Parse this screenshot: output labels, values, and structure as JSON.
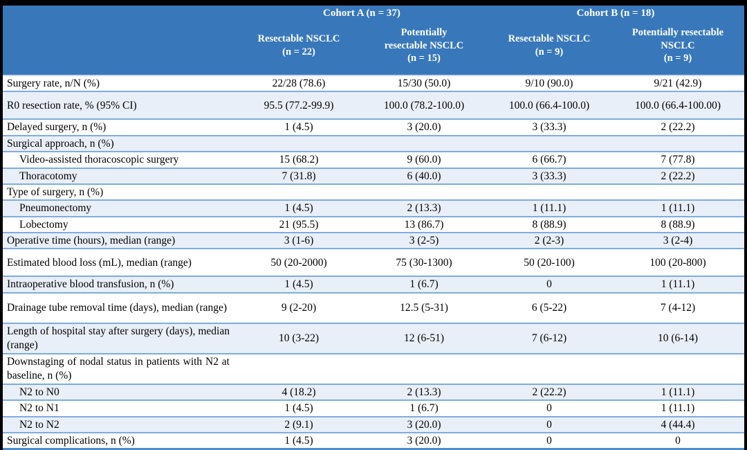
{
  "table": {
    "header": {
      "cohort_a": "Cohort A (n = 37)",
      "cohort_b": "Cohort B (n = 18)",
      "subcolumns": [
        "Resectable NSCLC\n(n = 22)",
        "Potentially\nresectable NSCLC\n(n = 15)",
        "Resectable NSCLC\n(n = 9)",
        "Potentially resectable\nNSCLC\n(n = 9)"
      ]
    },
    "rows": [
      {
        "label": "Surgery rate, n/N (%)",
        "values": [
          "22/28 (78.6)",
          "15/30 (50.0)",
          "9/10 (90.0)",
          "9/21 (42.9)"
        ],
        "stripe": false
      },
      {
        "label": "R0 resection rate, % (95% CI)",
        "values": [
          "95.5 (77.2-99.9)",
          "100.0 (78.2-100.0)",
          "100.0 (66.4-100.0)",
          "100.0 (66.4-100.00)"
        ],
        "stripe": true,
        "tall": true
      },
      {
        "label": "Delayed surgery, n (%)",
        "values": [
          "1 (4.5)",
          "3 (20.0)",
          "3 (33.3)",
          "2 (22.2)"
        ],
        "stripe": false
      },
      {
        "label": "Surgical approach, n (%)",
        "values": [
          "",
          "",
          "",
          ""
        ],
        "stripe": true,
        "section": true
      },
      {
        "label": "Video-assisted thoracoscopic surgery",
        "values": [
          "15 (68.2)",
          "9 (60.0)",
          "6 (66.7)",
          "7 (77.8)"
        ],
        "stripe": false,
        "indent": true
      },
      {
        "label": "Thoracotomy",
        "values": [
          "7 (31.8)",
          "6 (40.0)",
          "3 (33.3)",
          "2 (22.2)"
        ],
        "stripe": true,
        "indent": true
      },
      {
        "label": "Type of surgery, n (%)",
        "values": [
          "",
          "",
          "",
          ""
        ],
        "stripe": false,
        "section": true
      },
      {
        "label": "Pneumonectomy",
        "values": [
          "1 (4.5)",
          "2 (13.3)",
          "1 (11.1)",
          "1 (11.1)"
        ],
        "stripe": true,
        "indent": true
      },
      {
        "label": "Lobectomy",
        "values": [
          "21 (95.5)",
          "13 (86.7)",
          "8 (88.9)",
          "8 (88.9)"
        ],
        "stripe": false,
        "indent": true
      },
      {
        "label": "Operative time (hours), median (range)",
        "values": [
          "3 (1-6)",
          "3 (2-5)",
          "2 (2-3)",
          "3 (2-4)"
        ],
        "stripe": true
      },
      {
        "label": "Estimated blood loss (mL), median (range)",
        "values": [
          "50 (20-2000)",
          "75 (30-1300)",
          "50 (20-100)",
          "100 (20-800)"
        ],
        "stripe": false,
        "tall": true
      },
      {
        "label": "Intraoperative blood transfusion, n (%)",
        "values": [
          "1 (4.5)",
          "1 (6.7)",
          "0",
          "1 (11.1)"
        ],
        "stripe": true
      },
      {
        "label": "Drainage tube removal time (days), median (range)",
        "values": [
          "9 (2-20)",
          "12.5 (5-31)",
          "6 (5-22)",
          "7 (4-12)"
        ],
        "stripe": false,
        "twoline": true
      },
      {
        "label": "Length of hospital stay after surgery (days), median (range)",
        "values": [
          "10 (3-22)",
          "12 (6-51)",
          "7 (6-12)",
          "10 (6-14)"
        ],
        "stripe": true,
        "twoline": true
      },
      {
        "label": "Downstaging of nodal status in patients with N2 at baseline, n (%)",
        "values": [
          "",
          "",
          "",
          ""
        ],
        "stripe": false,
        "section": true,
        "twoline": true
      },
      {
        "label": "N2 to N0",
        "values": [
          "4 (18.2)",
          "2 (13.3)",
          "2 (22.2)",
          "1 (11.1)"
        ],
        "stripe": true,
        "indent": true
      },
      {
        "label": "N2 to N1",
        "values": [
          "1 (4.5)",
          "1 (6.7)",
          "0",
          "1 (11.1)"
        ],
        "stripe": false,
        "indent": true
      },
      {
        "label": "N2 to N2",
        "values": [
          "2 (9.1)",
          "3 (20.0)",
          "0",
          "4 (44.4)"
        ],
        "stripe": true,
        "indent": true
      },
      {
        "label": "Surgical complications, n (%)",
        "values": [
          "1 (4.5)",
          "3 (20.0)",
          "0",
          "0"
        ],
        "stripe": false
      }
    ]
  },
  "colors": {
    "header_blue": "#3878BA",
    "stripe_blue": "#E9EFF8",
    "row_border_blue": "#7FACDE",
    "bottom_border_blue": "#4E8FCB",
    "frame_black": "#000000",
    "header_text": "#FFFFFF",
    "body_text": "#000000"
  }
}
